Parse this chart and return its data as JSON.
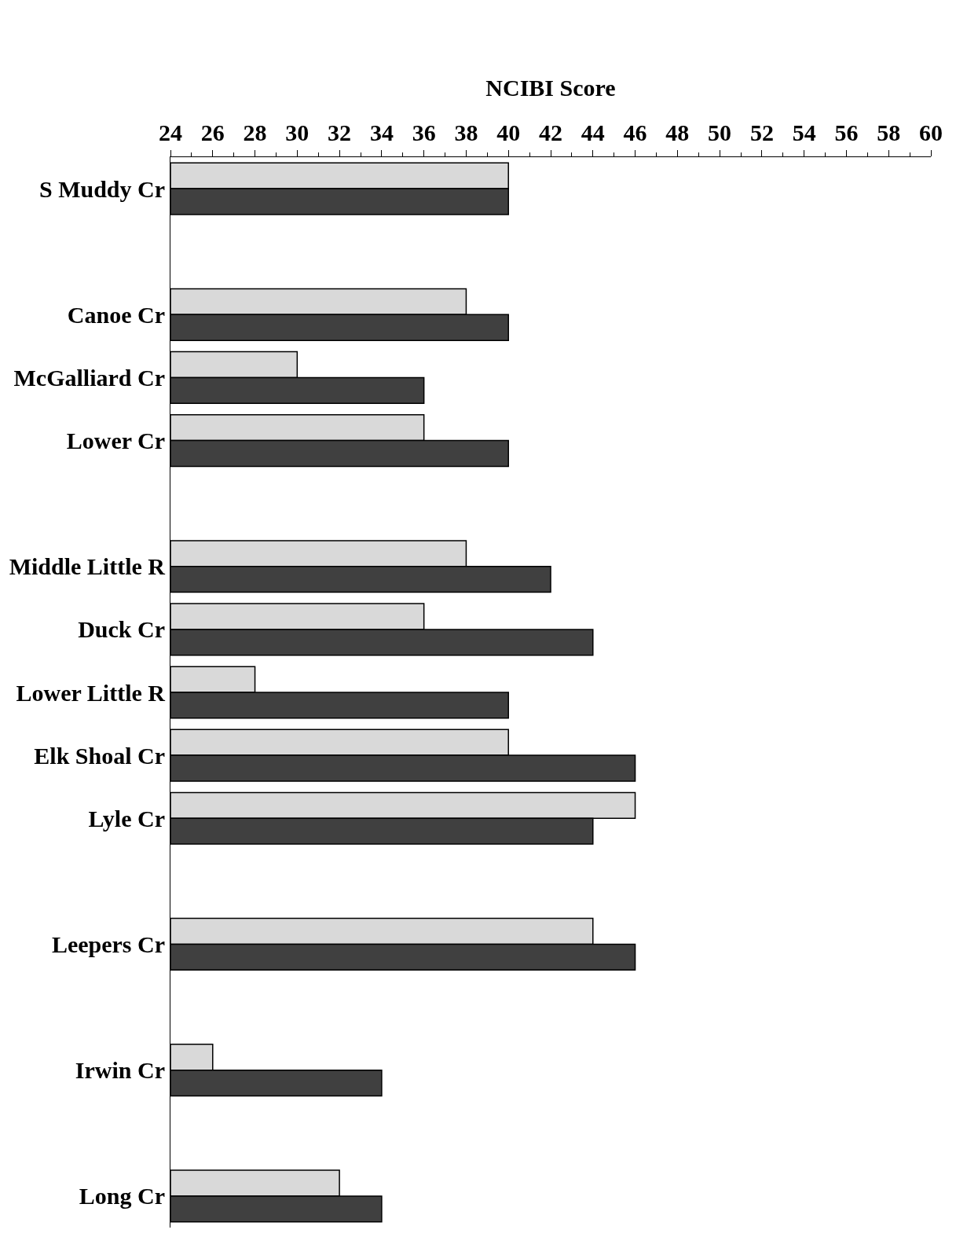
{
  "chart_data": {
    "type": "bar",
    "orientation": "horizontal",
    "xlabel": "NCIBI Score",
    "categories": [
      "S Muddy Cr",
      null,
      "Canoe Cr",
      "McGalliard Cr",
      "Lower Cr",
      null,
      "Middle Little R",
      "Duck Cr",
      "Lower Little R",
      "Elk Shoal Cr",
      "Lyle Cr",
      null,
      "Leepers Cr",
      null,
      "Irwin Cr",
      null,
      "Long Cr"
    ],
    "series": [
      {
        "color": "#d9d9d9",
        "values": [
          40,
          null,
          38,
          30,
          36,
          null,
          38,
          36,
          28,
          40,
          46,
          null,
          44,
          null,
          26,
          null,
          32
        ]
      },
      {
        "color": "#404040",
        "values": [
          40,
          null,
          40,
          36,
          40,
          null,
          42,
          44,
          40,
          46,
          44,
          null,
          46,
          null,
          34,
          null,
          34
        ]
      }
    ],
    "xlim": [
      24,
      60
    ],
    "xticks": [
      24,
      26,
      28,
      30,
      32,
      34,
      36,
      38,
      40,
      42,
      44,
      46,
      48,
      50,
      52,
      54,
      56,
      58,
      60
    ]
  }
}
